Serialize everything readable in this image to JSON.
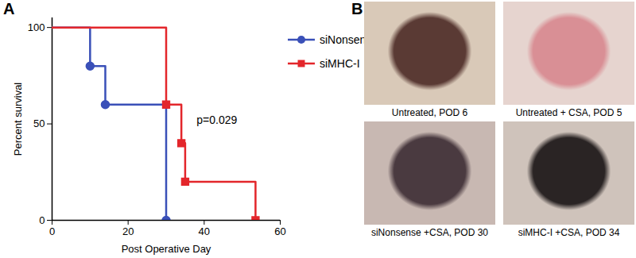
{
  "chart_data": {
    "type": "line",
    "panel_label": "A",
    "x_label": "Post Operative Day",
    "y_label": "Percent survival",
    "xlim": [
      0,
      60
    ],
    "xticks": [
      0,
      20,
      40,
      60
    ],
    "ylim": [
      0,
      105
    ],
    "yticks": [
      0,
      50,
      100
    ],
    "grid": false,
    "legend": "top-right",
    "series": [
      {
        "name": "siNonsense",
        "color": "#3a50b8",
        "marker": "circle",
        "line_style": "step",
        "x": [
          0,
          10,
          14,
          30
        ],
        "values": [
          100,
          80,
          60,
          0
        ]
      },
      {
        "name": "siMHC-I",
        "color": "#e3262b",
        "marker": "square",
        "line_style": "step",
        "x": [
          0,
          30,
          34,
          35,
          53.5
        ],
        "values": [
          100,
          60,
          40,
          20,
          0
        ]
      }
    ],
    "annotations": [
      {
        "text": "p=0.029",
        "x": 38,
        "y": 52
      }
    ]
  },
  "figure_panel": {
    "label": "B",
    "images": [
      {
        "caption": "Untreated, POD 6"
      },
      {
        "caption": "Untreated + CSA, POD 5"
      },
      {
        "caption": "siNonsense +CSA, POD 30"
      },
      {
        "caption": "siMHC-I +CSA, POD 34"
      }
    ]
  }
}
